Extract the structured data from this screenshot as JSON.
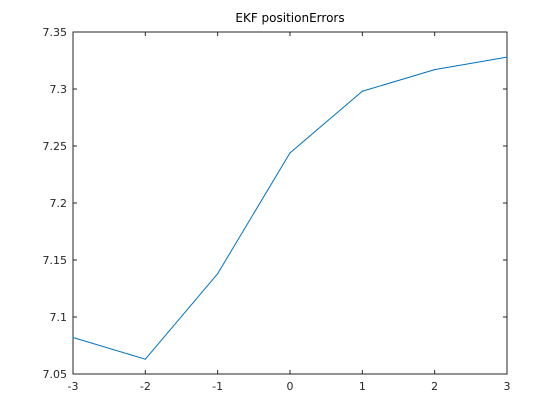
{
  "chart_data": {
    "type": "line",
    "title": "EKF positionErrors",
    "xlabel": "",
    "ylabel": "",
    "xlim": [
      -3,
      3
    ],
    "ylim": [
      7.05,
      7.35
    ],
    "xticks": [
      -3,
      -2,
      -1,
      0,
      1,
      2,
      3
    ],
    "yticks": [
      7.05,
      7.1,
      7.15,
      7.2,
      7.25,
      7.3,
      7.35
    ],
    "xtick_labels": [
      "-3",
      "-2",
      "-1",
      "0",
      "1",
      "2",
      "3"
    ],
    "ytick_labels": [
      "7.05",
      "7.1",
      "7.15",
      "7.2",
      "7.25",
      "7.3",
      "7.35"
    ],
    "grid": false,
    "series": [
      {
        "x": [
          -3,
          -2,
          -1,
          0,
          1,
          2,
          3
        ],
        "y": [
          7.082,
          7.063,
          7.138,
          7.244,
          7.298,
          7.317,
          7.328
        ],
        "color": "#0072BD"
      }
    ]
  }
}
